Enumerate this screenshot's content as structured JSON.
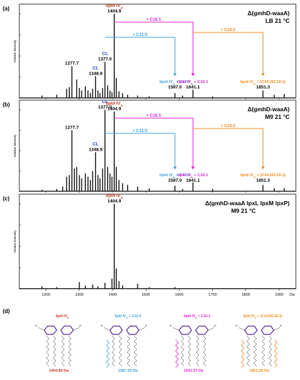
{
  "chart_data": [
    {
      "type": "bar",
      "panel_label": "(a)",
      "strain": "Δ(gmhD-waaA)",
      "condition": "LB 21 °C",
      "ylabel": "relative intensity",
      "xlim": [
        1120,
        1950
      ],
      "ylim": [
        0,
        100
      ],
      "peaks": [
        {
          "x": 1188,
          "y": 3
        },
        {
          "x": 1232,
          "y": 4
        },
        {
          "x": 1262,
          "y": 11
        },
        {
          "x": 1270,
          "y": 13
        },
        {
          "x": 1277.7,
          "y": 38,
          "label": "1277.7"
        },
        {
          "x": 1292,
          "y": 22
        },
        {
          "x": 1300,
          "y": 12
        },
        {
          "x": 1307,
          "y": 9
        },
        {
          "x": 1318,
          "y": 14
        },
        {
          "x": 1326,
          "y": 9
        },
        {
          "x": 1333,
          "y": 6
        },
        {
          "x": 1340,
          "y": 11
        },
        {
          "x": 1348.9,
          "y": 26,
          "label": "1348.9"
        },
        {
          "x": 1356,
          "y": 9
        },
        {
          "x": 1362,
          "y": 6
        },
        {
          "x": 1370,
          "y": 12
        },
        {
          "x": 1377.0,
          "y": 43,
          "label": "1377.0"
        },
        {
          "x": 1385,
          "y": 15
        },
        {
          "x": 1392,
          "y": 9
        },
        {
          "x": 1398,
          "y": 7
        },
        {
          "x": 1404.9,
          "y": 100,
          "label": "1404.9"
        },
        {
          "x": 1411,
          "y": 24
        },
        {
          "x": 1419,
          "y": 8
        },
        {
          "x": 1430,
          "y": 6
        },
        {
          "x": 1445,
          "y": 4
        },
        {
          "x": 1475,
          "y": 3
        },
        {
          "x": 1510,
          "y": 2
        },
        {
          "x": 1587.0,
          "y": 6
        },
        {
          "x": 1610,
          "y": 3
        },
        {
          "x": 1641.1,
          "y": 10
        },
        {
          "x": 1700,
          "y": 2
        },
        {
          "x": 1851.3,
          "y": 9
        },
        {
          "x": 1885,
          "y": 4
        },
        {
          "x": 1915,
          "y": 5
        }
      ],
      "annotations": [
        {
          "x": 1377.0,
          "text": "CL",
          "color": "#1f3fbf"
        },
        {
          "x": 1348.9,
          "text": "CL",
          "color": "#1f3fbf"
        },
        {
          "x": 1404.9,
          "main": "lipid IV",
          "sub": "A",
          "color": "#c0392b"
        },
        {
          "x": 1587.0,
          "main": "lipid IV",
          "sub": "A",
          "rest": " + C12:0",
          "value": "1587.0",
          "color": "#3b9fe0"
        },
        {
          "x": 1641.1,
          "main": "lipid IV",
          "sub": "A",
          "rest": " + C16:1",
          "value": "1641.1",
          "color": "#e020d0"
        },
        {
          "x": 1851.3,
          "main": "lipid IV",
          "sub": "A",
          "rest": " + (C14:0/C16:1)",
          "value": "1851.3",
          "color": "#f08c1a"
        }
      ],
      "arrows": [
        {
          "label": "+ C16:1",
          "from": 1404.9,
          "to": 1641.1,
          "color": "#e020d0"
        },
        {
          "label": "+ C12:0",
          "from": 1377.0,
          "to": 1587.0,
          "color": "#3b9fe0"
        },
        {
          "label": "+ C14:0",
          "from": 1641.1,
          "to": 1851.3,
          "color": "#f08c1a"
        }
      ]
    },
    {
      "type": "bar",
      "panel_label": "(b)",
      "strain": "Δ(gmhD-waaA)",
      "condition": "M9 21 °C",
      "ylabel": "relative intensity",
      "xlim": [
        1120,
        1950
      ],
      "ylim": [
        0,
        100
      ],
      "peaks": [
        {
          "x": 1188,
          "y": 2
        },
        {
          "x": 1232,
          "y": 3
        },
        {
          "x": 1250,
          "y": 6
        },
        {
          "x": 1262,
          "y": 18
        },
        {
          "x": 1270,
          "y": 20
        },
        {
          "x": 1277.7,
          "y": 75,
          "label": "1277.7"
        },
        {
          "x": 1285,
          "y": 28
        },
        {
          "x": 1292,
          "y": 30
        },
        {
          "x": 1300,
          "y": 20
        },
        {
          "x": 1307,
          "y": 16
        },
        {
          "x": 1318,
          "y": 22
        },
        {
          "x": 1326,
          "y": 18
        },
        {
          "x": 1333,
          "y": 14
        },
        {
          "x": 1340,
          "y": 25
        },
        {
          "x": 1348.9,
          "y": 48,
          "label": "1348.9"
        },
        {
          "x": 1356,
          "y": 20
        },
        {
          "x": 1362,
          "y": 16
        },
        {
          "x": 1370,
          "y": 28
        },
        {
          "x": 1377.0,
          "y": 100,
          "label": "1377.0"
        },
        {
          "x": 1385,
          "y": 30
        },
        {
          "x": 1392,
          "y": 22
        },
        {
          "x": 1398,
          "y": 18
        },
        {
          "x": 1404.9,
          "y": 98,
          "label": "1404.9"
        },
        {
          "x": 1411,
          "y": 30
        },
        {
          "x": 1419,
          "y": 14
        },
        {
          "x": 1430,
          "y": 10
        },
        {
          "x": 1445,
          "y": 8
        },
        {
          "x": 1475,
          "y": 6
        },
        {
          "x": 1510,
          "y": 4
        },
        {
          "x": 1587.0,
          "y": 7
        },
        {
          "x": 1610,
          "y": 3
        },
        {
          "x": 1641.1,
          "y": 11
        },
        {
          "x": 1700,
          "y": 3
        },
        {
          "x": 1851.3,
          "y": 8
        },
        {
          "x": 1885,
          "y": 4
        },
        {
          "x": 1915,
          "y": 4
        }
      ],
      "annotations": [
        {
          "x": 1377.0,
          "text": "CL",
          "color": "#1f3fbf"
        },
        {
          "x": 1348.9,
          "text": "CL",
          "color": "#1f3fbf"
        },
        {
          "x": 1404.9,
          "main": "lipid IV",
          "sub": "A",
          "color": "#c0392b"
        },
        {
          "x": 1587.0,
          "main": "lipid IV",
          "sub": "A",
          "rest": " + C12:0",
          "value": "1587.0",
          "color": "#3b9fe0"
        },
        {
          "x": 1641.1,
          "main": "lipid IV",
          "sub": "A",
          "rest": " + C16:1",
          "value": "1641.1",
          "color": "#e020d0"
        },
        {
          "x": 1851.3,
          "main": "lipid IV",
          "sub": "A",
          "rest": " + (C14:0/C16:1)",
          "value": "1851.3",
          "color": "#f08c1a"
        }
      ],
      "arrows": [
        {
          "label": "+ C16:1",
          "from": 1404.9,
          "to": 1641.1,
          "color": "#e020d0"
        },
        {
          "label": "+ C12:0",
          "from": 1377.0,
          "to": 1587.0,
          "color": "#3b9fe0"
        },
        {
          "label": "+ C14:0",
          "from": 1641.1,
          "to": 1851.3,
          "color": "#f08c1a"
        }
      ]
    },
    {
      "type": "bar",
      "panel_label": "(c)",
      "strain": "Δ(gmhD-waaA lpxL lpxM lpxP)",
      "condition": "M9 21 °C",
      "ylabel": "relative intensity",
      "xlim": [
        1120,
        1950
      ],
      "ylim": [
        0,
        100
      ],
      "xlabel": "Da",
      "xticks": [
        1200,
        1300,
        1400,
        1500,
        1600,
        1700,
        1800,
        1900
      ],
      "peaks": [
        {
          "x": 1188,
          "y": 3
        },
        {
          "x": 1232,
          "y": 2
        },
        {
          "x": 1300,
          "y": 8
        },
        {
          "x": 1318,
          "y": 4
        },
        {
          "x": 1340,
          "y": 5
        },
        {
          "x": 1356,
          "y": 3
        },
        {
          "x": 1377.0,
          "y": 7
        },
        {
          "x": 1398,
          "y": 12
        },
        {
          "x": 1404.9,
          "y": 100,
          "label": "1404.9"
        },
        {
          "x": 1411,
          "y": 24
        },
        {
          "x": 1419,
          "y": 9
        },
        {
          "x": 1430,
          "y": 4
        },
        {
          "x": 1475,
          "y": 6
        },
        {
          "x": 1510,
          "y": 2
        },
        {
          "x": 1587,
          "y": 2
        }
      ],
      "annotations": [
        {
          "x": 1404.9,
          "main": "lipid IV",
          "sub": "A",
          "color": "#c0392b"
        }
      ]
    }
  ],
  "panel_d": {
    "label": "(d)",
    "structures": [
      {
        "main": "lipid IV",
        "sub": "A",
        "rest": "",
        "mass": "1404.85 Da",
        "color": "#c0392b"
      },
      {
        "main": "lipid IV",
        "sub": "A",
        "rest": " + C12:0",
        "mass": "1587.09 Da",
        "color": "#3b9fe0"
      },
      {
        "main": "lipid IV",
        "sub": "A",
        "rest": " + C16:1",
        "mass": "1641.07 Da",
        "color": "#e020d0"
      },
      {
        "main": "lipid IV",
        "sub": "A",
        "rest": " + (C14:0/C16:1)",
        "mass": "1851.26 Da",
        "color": "#f08c1a"
      }
    ]
  }
}
